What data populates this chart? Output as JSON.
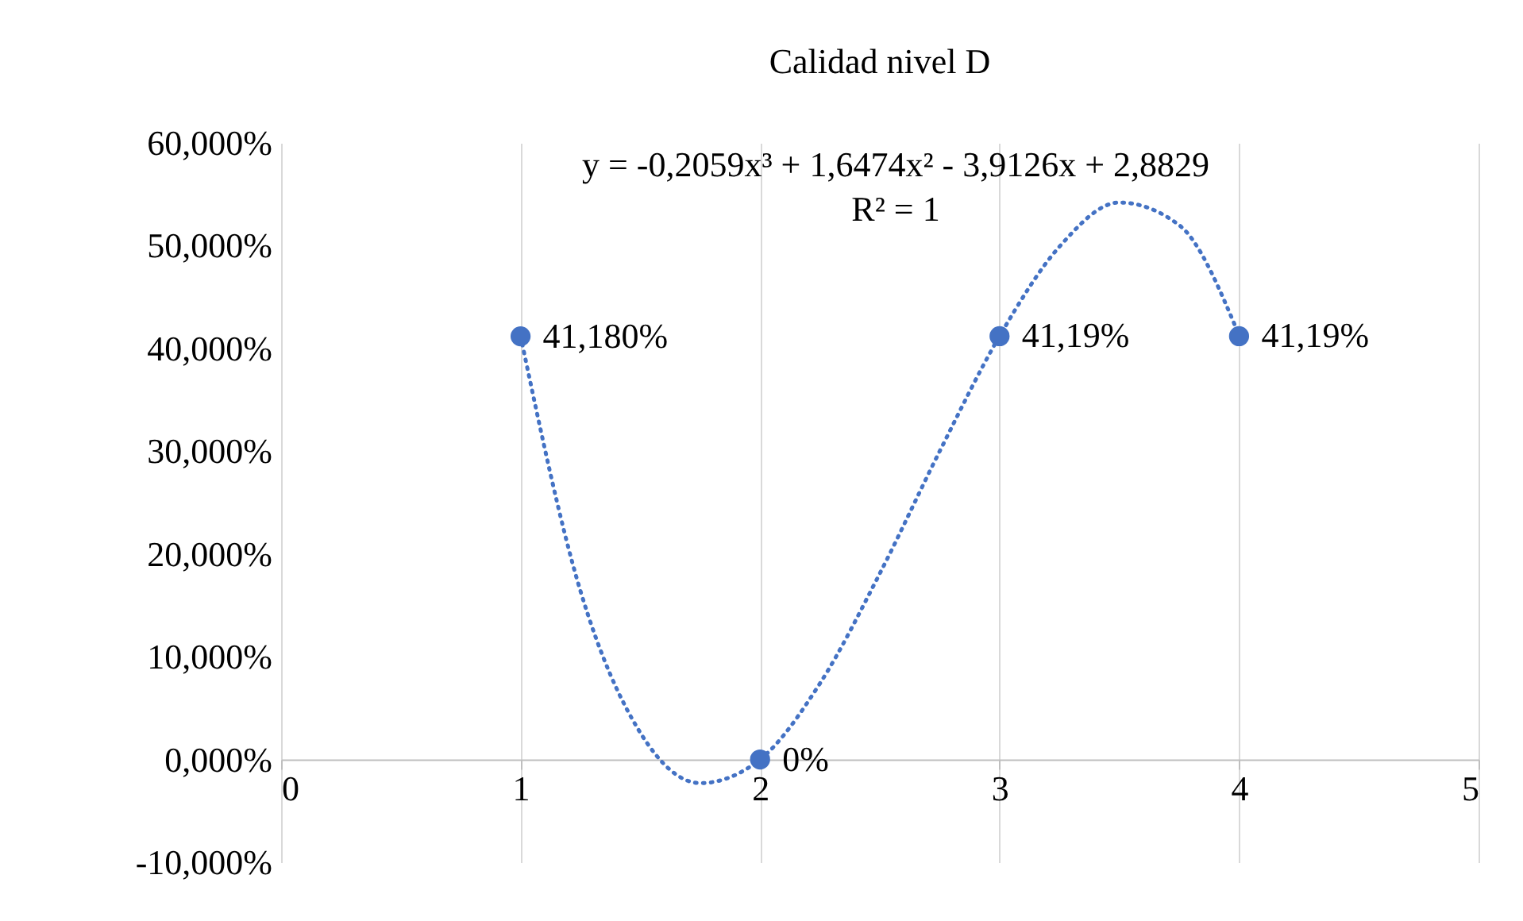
{
  "chart_data": {
    "type": "scatter",
    "title": "Calidad nivel D",
    "annotations": [
      "y = -0,2059x³ + 1,6474x² - 3,9126x + 2,8829",
      "R² = 1"
    ],
    "xlim": [
      0,
      5
    ],
    "xticks": [
      0,
      1,
      2,
      3,
      4,
      5
    ],
    "ylim": [
      -10,
      60
    ],
    "yticks": [
      {
        "value": -10,
        "label": "-10,000%"
      },
      {
        "value": 0,
        "label": "0,000%"
      },
      {
        "value": 10,
        "label": "10,000%"
      },
      {
        "value": 20,
        "label": "20,000%"
      },
      {
        "value": 30,
        "label": "30,000%"
      },
      {
        "value": 40,
        "label": "40,000%"
      },
      {
        "value": 50,
        "label": "50,000%"
      },
      {
        "value": 60,
        "label": "60,000%"
      }
    ],
    "grid": "x",
    "legend": false,
    "marker": "circle",
    "series": [
      {
        "type": "line",
        "color": "#4472c4",
        "line_style": "dotted",
        "marker": "none",
        "x": [
          1,
          1.25,
          1.5,
          1.75,
          2,
          2.25,
          2.5,
          2.75,
          3,
          3.25,
          3.5,
          3.75,
          4
        ],
        "values": [
          41.2,
          16.4,
          2.6,
          -2.3,
          0,
          7.4,
          18.1,
          30,
          41.2,
          49.9,
          54.2,
          52,
          41.3
        ]
      },
      {
        "color": "#4472c4",
        "x": [
          1,
          2,
          3,
          4
        ],
        "values": [
          41.18,
          0,
          41.19,
          41.19
        ],
        "value_labels": [
          "41,180%",
          "0%",
          "41,19%",
          "41,19%"
        ]
      }
    ]
  }
}
